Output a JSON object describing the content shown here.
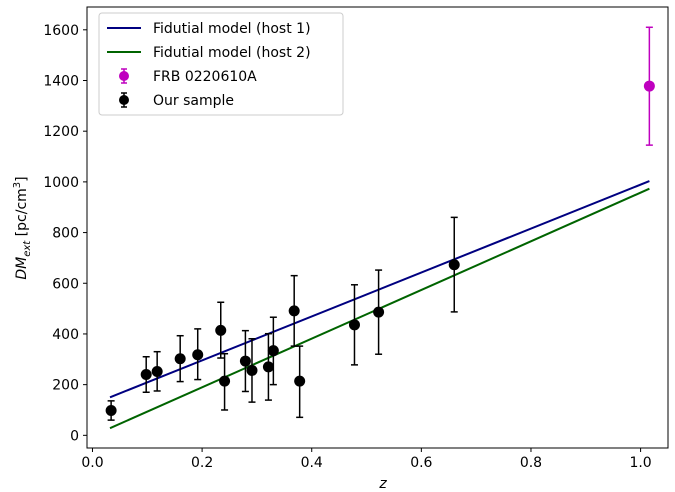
{
  "chart_data": {
    "type": "scatter",
    "xlabel": "z",
    "ylabel_main": "DM",
    "ylabel_sub": "ext",
    "ylabel_unit_open": " [pc/cm",
    "ylabel_unit_sup": "3",
    "ylabel_unit_close": "]",
    "xlim": [
      -0.01,
      1.05
    ],
    "ylim": [
      -50,
      1690
    ],
    "xticks": [
      0.0,
      0.2,
      0.4,
      0.6,
      0.8,
      1.0
    ],
    "xtick_labels": [
      "0.0",
      "0.2",
      "0.4",
      "0.6",
      "0.8",
      "1.0"
    ],
    "yticks": [
      0,
      200,
      400,
      600,
      800,
      1000,
      1200,
      1400,
      1600
    ],
    "ytick_labels": [
      "0",
      "200",
      "400",
      "600",
      "800",
      "1000",
      "1200",
      "1400",
      "1600"
    ],
    "grid": false,
    "legend_position": "upper-left",
    "lines": [
      {
        "name": "Fidutial model (host 1)",
        "color": "#000080",
        "x": [
          0.032,
          1.016
        ],
        "y": [
          150,
          1003
        ]
      },
      {
        "name": "Fidutial model (host 2)",
        "color": "#006400",
        "x": [
          0.032,
          1.016
        ],
        "y": [
          28,
          973
        ]
      }
    ],
    "points": [
      {
        "name": "FRB 0220610A",
        "color": "#bf00bf",
        "data": [
          {
            "x": 1.016,
            "y": 1378,
            "lo": 1145,
            "hi": 1610
          }
        ]
      },
      {
        "name": "Our sample",
        "color": "#000000",
        "data": [
          {
            "x": 0.034,
            "y": 98,
            "lo": 60,
            "hi": 136
          },
          {
            "x": 0.098,
            "y": 240,
            "lo": 170,
            "hi": 310
          },
          {
            "x": 0.118,
            "y": 252,
            "lo": 175,
            "hi": 330
          },
          {
            "x": 0.16,
            "y": 302,
            "lo": 212,
            "hi": 393
          },
          {
            "x": 0.192,
            "y": 318,
            "lo": 220,
            "hi": 420
          },
          {
            "x": 0.234,
            "y": 414,
            "lo": 305,
            "hi": 525
          },
          {
            "x": 0.241,
            "y": 214,
            "lo": 100,
            "hi": 322
          },
          {
            "x": 0.279,
            "y": 293,
            "lo": 173,
            "hi": 413
          },
          {
            "x": 0.291,
            "y": 256,
            "lo": 131,
            "hi": 381
          },
          {
            "x": 0.321,
            "y": 270,
            "lo": 139,
            "hi": 401
          },
          {
            "x": 0.33,
            "y": 334,
            "lo": 200,
            "hi": 466
          },
          {
            "x": 0.368,
            "y": 491,
            "lo": 352,
            "hi": 630
          },
          {
            "x": 0.378,
            "y": 214,
            "lo": 71,
            "hi": 352
          },
          {
            "x": 0.478,
            "y": 436,
            "lo": 278,
            "hi": 594
          },
          {
            "x": 0.522,
            "y": 486,
            "lo": 320,
            "hi": 652
          },
          {
            "x": 0.66,
            "y": 673,
            "lo": 487,
            "hi": 860
          }
        ]
      }
    ]
  }
}
